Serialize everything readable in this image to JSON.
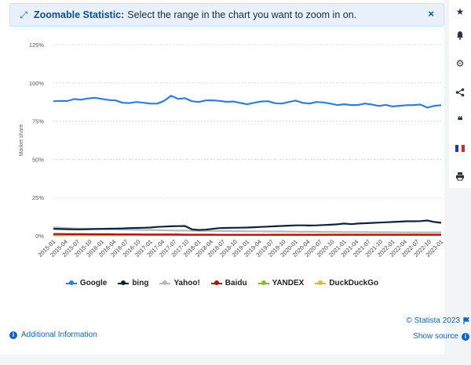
{
  "banner": {
    "title": "Zoomable Statistic:",
    "text": "Select the range in the chart you want to zoom in on.",
    "close": "×"
  },
  "sidebar": {
    "icons": [
      "star-icon",
      "bell-icon",
      "gear-icon",
      "share-icon",
      "quote-icon",
      "france-flag-icon",
      "print-icon"
    ]
  },
  "footer": {
    "additional_info": "Additional Information",
    "copyright": "© Statista 2023",
    "show_source": "Show source"
  },
  "colors": {
    "Google": "#2f7ed8",
    "bing": "#0d233a",
    "Yahoo!": "#b8b8b8",
    "Baidu": "#b30f10",
    "YANDEX": "#8bbc21",
    "DuckDuckGo": "#e8b924"
  },
  "chart_data": {
    "type": "line",
    "ylabel": "Market share",
    "ylim": [
      0,
      125
    ],
    "yticks": [
      0,
      25,
      50,
      75,
      100,
      125
    ],
    "ytick_labels": [
      "0%",
      "25%",
      "50%",
      "75%",
      "100%",
      "125%"
    ],
    "x_tick_labels": [
      "2015-01",
      "2015-04",
      "2015-07",
      "2015-10",
      "2016-01",
      "2016-04",
      "2016-07",
      "2016-10",
      "2017-01",
      "2017-04",
      "2017-07",
      "2017-10",
      "2018-01",
      "2018-04",
      "2018-07",
      "2018-10",
      "2019-01",
      "2019-04",
      "2019-07",
      "2019-10",
      "2020-01",
      "2020-04",
      "2020-07",
      "2020-10",
      "2021-01",
      "2021-04",
      "2021-07",
      "2021-10",
      "2022-01",
      "2022-04",
      "2022-07",
      "2022-10",
      "2023-01"
    ],
    "x_start": "2015-01",
    "grid": true,
    "legend_position": "bottom",
    "series": [
      {
        "name": "Google",
        "values": [
          88.0,
          88.2,
          88.1,
          89.4,
          89.0,
          89.8,
          90.2,
          89.5,
          88.8,
          88.5,
          87.0,
          86.8,
          87.5,
          87.0,
          86.5,
          86.4,
          88.2,
          91.6,
          89.5,
          90.0,
          88.0,
          87.5,
          88.5,
          88.6,
          88.2,
          87.6,
          87.8,
          86.9,
          86.0,
          87.0,
          87.8,
          88.0,
          86.7,
          86.5,
          87.5,
          88.4,
          86.9,
          86.5,
          87.5,
          87.2,
          86.4,
          85.5,
          86.0,
          85.5,
          85.5,
          86.5,
          85.8,
          84.9,
          85.6,
          84.6,
          85.0,
          85.4,
          85.5,
          85.8,
          83.8,
          85.0,
          85.4
        ],
        "color": "#2f7ed8"
      },
      {
        "name": "bing",
        "values": [
          4.5,
          4.4,
          4.3,
          4.2,
          4.2,
          4.3,
          4.4,
          4.5,
          4.6,
          4.7,
          4.8,
          5.0,
          5.1,
          5.2,
          5.4,
          5.8,
          6.0,
          6.2,
          6.3,
          6.4,
          4.2,
          3.8,
          4.0,
          4.5,
          5.0,
          5.1,
          5.2,
          5.3,
          5.4,
          5.6,
          5.8,
          6.0,
          6.2,
          6.4,
          6.6,
          6.8,
          6.8,
          6.7,
          6.8,
          7.0,
          7.2,
          7.5,
          8.0,
          7.6,
          8.0,
          8.2,
          8.4,
          8.6,
          8.8,
          9.0,
          9.2,
          9.5,
          9.5,
          9.6,
          10.0,
          9.0,
          8.5
        ],
        "color": "#0d233a"
      },
      {
        "name": "Yahoo!",
        "values": [
          5.5,
          5.3,
          5.0,
          4.8,
          4.6,
          4.6,
          4.5,
          4.4,
          4.3,
          4.2,
          4.1,
          4.0,
          3.9,
          3.8,
          3.8,
          3.7,
          3.6,
          3.5,
          3.4,
          3.4,
          3.3,
          3.3,
          3.2,
          3.2,
          3.1,
          3.1,
          3.0,
          3.0,
          2.9,
          2.9,
          2.9,
          2.8,
          2.8,
          2.8,
          2.7,
          2.7,
          2.6,
          2.6,
          2.6,
          2.5,
          2.5,
          2.5,
          2.4,
          2.4,
          2.4,
          2.4,
          2.3,
          2.3,
          2.3,
          2.3,
          2.2,
          2.2,
          2.2,
          2.2,
          2.2,
          2.2,
          2.2
        ],
        "color": "#b8b8b8"
      },
      {
        "name": "Baidu",
        "values": [
          1.2,
          1.2,
          1.1,
          1.1,
          1.1,
          1.0,
          1.0,
          1.0,
          1.0,
          0.9,
          0.9,
          0.9,
          0.9,
          0.8,
          0.8,
          0.8,
          0.8,
          0.8,
          0.8,
          0.7,
          0.7,
          0.7,
          0.7,
          0.7,
          0.6,
          0.6,
          0.6,
          0.6,
          0.6,
          0.6,
          0.6,
          0.6,
          0.6,
          0.6,
          0.6,
          0.6,
          0.6,
          0.6,
          0.6,
          0.6,
          0.6,
          0.6,
          0.6,
          0.6,
          0.6,
          0.6,
          0.6,
          0.6,
          0.6,
          0.6,
          0.6,
          0.6,
          0.6,
          0.6,
          0.6,
          0.6,
          0.6
        ],
        "color": "#b30f10"
      },
      {
        "name": "YANDEX",
        "values": [
          0.4,
          0.4,
          0.4,
          0.4,
          0.4,
          0.4,
          0.4,
          0.4,
          0.4,
          0.4,
          0.5,
          0.5,
          0.5,
          0.5,
          0.5,
          0.5,
          0.5,
          0.5,
          0.5,
          0.5,
          0.5,
          0.5,
          0.5,
          0.5,
          0.5,
          0.5,
          0.5,
          0.5,
          0.5,
          0.5,
          0.5,
          0.5,
          0.5,
          0.5,
          0.5,
          0.5,
          0.5,
          0.5,
          0.5,
          0.5,
          0.6,
          0.6,
          0.6,
          0.6,
          0.6,
          0.6,
          0.6,
          0.6,
          0.6,
          0.6,
          0.6,
          0.6,
          0.6,
          0.6,
          0.6,
          0.6,
          0.6
        ],
        "color": "#8bbc21"
      },
      {
        "name": "DuckDuckGo",
        "values": [
          0.3,
          0.3,
          0.4,
          0.4,
          0.4,
          0.4,
          0.4,
          0.4,
          0.4,
          0.4,
          0.5,
          0.5,
          0.5,
          0.5,
          0.5,
          0.5,
          0.5,
          0.6,
          0.6,
          0.6,
          0.6,
          0.6,
          0.6,
          0.7,
          0.7,
          0.7,
          0.7,
          0.7,
          0.7,
          0.7,
          0.7,
          0.7,
          0.8,
          0.8,
          0.8,
          0.8,
          0.8,
          0.8,
          0.8,
          0.8,
          0.8,
          0.8,
          0.8,
          0.8,
          0.8,
          0.8,
          0.8,
          0.8,
          0.8,
          0.8,
          0.8,
          0.8,
          0.9,
          0.9,
          0.9,
          0.9,
          0.9
        ],
        "color": "#e8b924"
      }
    ]
  }
}
